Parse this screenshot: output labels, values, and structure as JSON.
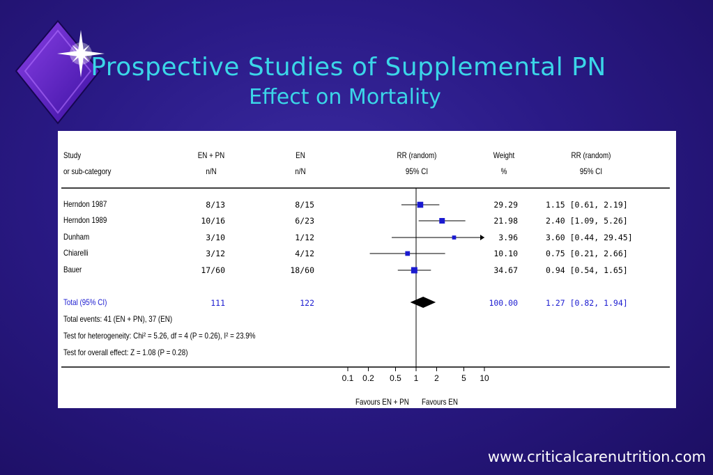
{
  "slide": {
    "title": "Prospective Studies of Supplemental PN",
    "subtitle": "Effect on Mortality",
    "footer": "www.criticalcarenutrition.com"
  },
  "table": {
    "headers": {
      "study": [
        "Study",
        "or sub-category"
      ],
      "enpn": [
        "EN + PN",
        "n/N"
      ],
      "en": [
        "EN",
        "n/N"
      ],
      "rr_plot": [
        "RR (random)",
        "95% CI"
      ],
      "weight": [
        "Weight",
        "%"
      ],
      "rr_ci": [
        "RR (random)",
        "95% CI"
      ]
    },
    "rows": [
      {
        "study": "Herndon 1987",
        "enpn": "8/13",
        "en": "8/15",
        "weight": "29.29",
        "rr": "1.15 [0.61, 2.19]"
      },
      {
        "study": "Herndon 1989",
        "enpn": "10/16",
        "en": "6/23",
        "weight": "21.98",
        "rr": "2.40 [1.09, 5.26]"
      },
      {
        "study": "Dunham",
        "enpn": "3/10",
        "en": "1/12",
        "weight": "3.96",
        "rr": "3.60 [0.44, 29.45]"
      },
      {
        "study": "Chiarelli",
        "enpn": "3/12",
        "en": "4/12",
        "weight": "10.10",
        "rr": "0.75 [0.21, 2.66]"
      },
      {
        "study": "Bauer",
        "enpn": "17/60",
        "en": "18/60",
        "weight": "34.67",
        "rr": "0.94 [0.54, 1.65]"
      }
    ],
    "total": {
      "study": "Total (95% CI)",
      "enpn": "111",
      "en": "122",
      "weight": "100.00",
      "rr": "1.27 [0.82, 1.94]"
    },
    "notes": [
      "Total events: 41 (EN + PN), 37 (EN)",
      "Test for heterogeneity: Chi² = 5.26, df = 4 (P = 0.26), I² = 23.9%",
      "Test for overall effect: Z = 1.08 (P = 0.28)"
    ],
    "favours_left": "Favours EN + PN",
    "favours_right": "Favours EN"
  },
  "chart_data": {
    "type": "forest",
    "scale": "log",
    "xlim": [
      0.1,
      10
    ],
    "xticks": [
      "0.1",
      "0.2",
      "0.5",
      "1",
      "2",
      "5",
      "10"
    ],
    "xtick_values": [
      0.1,
      0.2,
      0.5,
      1,
      2,
      5,
      10
    ],
    "studies": [
      {
        "name": "Herndon 1987",
        "rr": 1.15,
        "lo": 0.61,
        "hi": 2.19,
        "weight": 29.29
      },
      {
        "name": "Herndon 1989",
        "rr": 2.4,
        "lo": 1.09,
        "hi": 5.26,
        "weight": 21.98
      },
      {
        "name": "Dunham",
        "rr": 3.6,
        "lo": 0.44,
        "hi": 29.45,
        "weight": 3.96
      },
      {
        "name": "Chiarelli",
        "rr": 0.75,
        "lo": 0.21,
        "hi": 2.66,
        "weight": 10.1
      },
      {
        "name": "Bauer",
        "rr": 0.94,
        "lo": 0.54,
        "hi": 1.65,
        "weight": 34.67
      }
    ],
    "pooled": {
      "name": "Total (95% CI)",
      "rr": 1.27,
      "lo": 0.82,
      "hi": 1.94
    },
    "colors": {
      "marker": "#1a1ad0",
      "pooled": "#000000",
      "line": "#000000"
    }
  }
}
